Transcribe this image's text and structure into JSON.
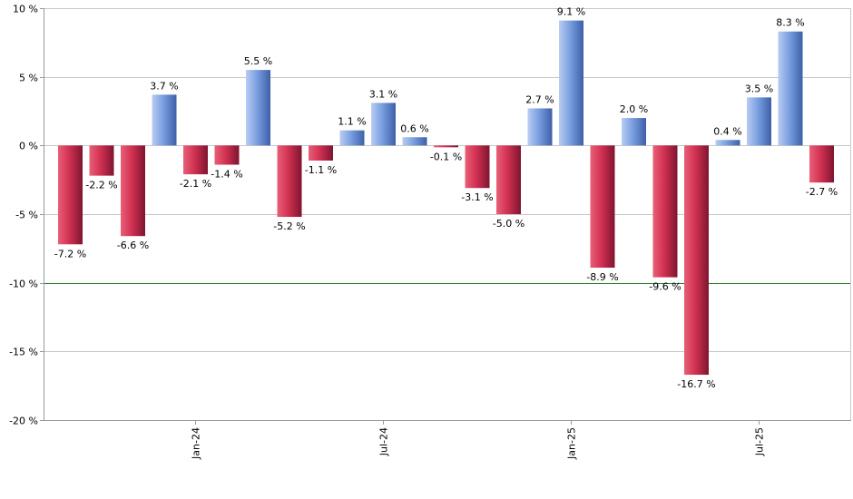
{
  "chart_data": {
    "type": "bar",
    "ylim": [
      -20,
      10
    ],
    "yticks": [
      10,
      5,
      0,
      -5,
      -10,
      -15,
      -20
    ],
    "ytick_labels": [
      "10 %",
      "5 %",
      "0 %",
      "-5 %",
      "-10 %",
      "-15 %",
      "-20 %"
    ],
    "value_suffix": " %",
    "values": [
      -7.2,
      -2.2,
      -6.6,
      3.7,
      -2.1,
      -1.4,
      5.5,
      -5.2,
      -1.1,
      1.1,
      3.1,
      0.6,
      -0.1,
      -3.1,
      -5.0,
      2.7,
      9.1,
      -8.9,
      2.0,
      -9.6,
      -16.7,
      0.4,
      3.5,
      8.3,
      -2.7
    ],
    "value_labels": [
      "-7.2 %",
      "-2.2 %",
      "-6.6 %",
      "3.7 %",
      "-2.1 %",
      "-1.4 %",
      "5.5 %",
      "-5.2 %",
      "-1.1 %",
      "1.1 %",
      "3.1 %",
      "0.6 %",
      "-0.1 %",
      "-3.1 %",
      "-5.0 %",
      "2.7 %",
      "9.1 %",
      "-8.9 %",
      "2.0 %",
      "-9.6 %",
      "-16.7 %",
      "0.4 %",
      "3.5 %",
      "8.3 %",
      "-2.7 %"
    ],
    "x_tick_labels": [
      {
        "label": "Jan-24",
        "bar_index": 4
      },
      {
        "label": "Jul-24",
        "bar_index": 10
      },
      {
        "label": "Jan-25",
        "bar_index": 16
      },
      {
        "label": "Jul-25",
        "bar_index": 22
      }
    ],
    "reference_line": {
      "value": -10,
      "color": "#2e7d32"
    },
    "grid": true,
    "colors": {
      "positive": "#5b86d6",
      "negative": "#c8244a",
      "grid": "#c8c8c8",
      "axis": "#9a9a9a"
    }
  }
}
